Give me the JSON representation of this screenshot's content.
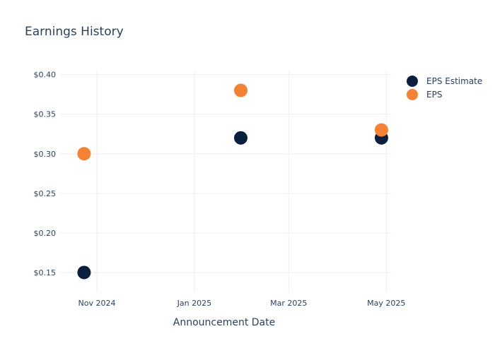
{
  "chart_data": {
    "type": "scatter",
    "title": "Earnings History",
    "xlabel": "Announcement Date",
    "ylabel": "",
    "x_axis_type": "date",
    "xlim": [
      "2024-10-09",
      "2025-05-04"
    ],
    "x_ticks": [
      {
        "date": "2024-11-01",
        "label": "Nov 2024"
      },
      {
        "date": "2025-01-01",
        "label": "Jan 2025"
      },
      {
        "date": "2025-03-01",
        "label": "Mar 2025"
      },
      {
        "date": "2025-05-01",
        "label": "May 2025"
      }
    ],
    "ylim": [
      0.125,
      0.405
    ],
    "y_ticks": [
      {
        "value": 0.15,
        "label": "$0.15"
      },
      {
        "value": 0.2,
        "label": "$0.20"
      },
      {
        "value": 0.25,
        "label": "$0.25"
      },
      {
        "value": 0.3,
        "label": "$0.30"
      },
      {
        "value": 0.35,
        "label": "$0.35"
      },
      {
        "value": 0.4,
        "label": "$0.40"
      }
    ],
    "grid": true,
    "legend_position": "top-right",
    "series": [
      {
        "name": "EPS Estimate",
        "color": "#0b1f3f",
        "points": [
          {
            "x": "2024-10-24",
            "y": 0.15
          },
          {
            "x": "2025-01-30",
            "y": 0.32
          },
          {
            "x": "2025-04-28",
            "y": 0.32
          }
        ]
      },
      {
        "name": "EPS",
        "color": "#f58134",
        "points": [
          {
            "x": "2024-10-24",
            "y": 0.3
          },
          {
            "x": "2025-01-30",
            "y": 0.38
          },
          {
            "x": "2025-04-28",
            "y": 0.33
          }
        ]
      }
    ]
  }
}
